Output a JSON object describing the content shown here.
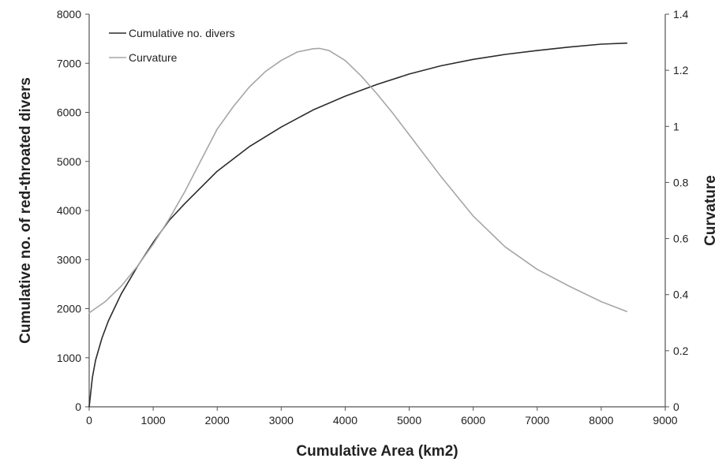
{
  "chart_data": {
    "type": "line",
    "xlabel": "Cumulative Area (km2)",
    "ylabel": "Cumulative no. of red-throated divers",
    "y2label": "Curvature",
    "xlim": [
      0,
      9000
    ],
    "ylim": [
      0,
      8000
    ],
    "y2lim": [
      0,
      1.4
    ],
    "x_ticks": [
      "0",
      "1000",
      "2000",
      "3000",
      "4000",
      "5000",
      "6000",
      "7000",
      "8000",
      "9000"
    ],
    "y_ticks": [
      "0",
      "1000",
      "2000",
      "3000",
      "4000",
      "5000",
      "6000",
      "7000",
      "8000"
    ],
    "y2_ticks": [
      "0",
      "0.2",
      "0.4",
      "0.6",
      "0.8",
      "1",
      "1.2",
      "1.4"
    ],
    "grid": false,
    "legend_position": "top-left",
    "series": [
      {
        "name": "Cumulative no. divers",
        "axis": "left",
        "color": "#2b2b2b",
        "x": [
          0,
          50,
          100,
          200,
          300,
          500,
          750,
          1000,
          1250,
          1500,
          2000,
          2500,
          3000,
          3500,
          4000,
          4500,
          5000,
          5500,
          6000,
          6500,
          7000,
          7500,
          8000,
          8400
        ],
        "y": [
          0,
          600,
          950,
          1400,
          1750,
          2300,
          2850,
          3350,
          3800,
          4150,
          4800,
          5300,
          5700,
          6050,
          6330,
          6570,
          6780,
          6950,
          7080,
          7180,
          7260,
          7330,
          7390,
          7410
        ]
      },
      {
        "name": "Curvature",
        "axis": "right",
        "color": "#a6a6a6",
        "x": [
          0,
          250,
          500,
          750,
          1000,
          1250,
          1500,
          1750,
          2000,
          2250,
          2500,
          2750,
          3000,
          3250,
          3500,
          3600,
          3750,
          4000,
          4250,
          4500,
          4750,
          5000,
          5500,
          6000,
          6500,
          7000,
          7500,
          8000,
          8400
        ],
        "y": [
          0.335,
          0.375,
          0.43,
          0.5,
          0.58,
          0.67,
          0.77,
          0.88,
          0.99,
          1.07,
          1.14,
          1.195,
          1.235,
          1.265,
          1.277,
          1.278,
          1.27,
          1.235,
          1.18,
          1.115,
          1.045,
          0.97,
          0.82,
          0.68,
          0.57,
          0.49,
          0.43,
          0.375,
          0.34
        ]
      }
    ]
  }
}
